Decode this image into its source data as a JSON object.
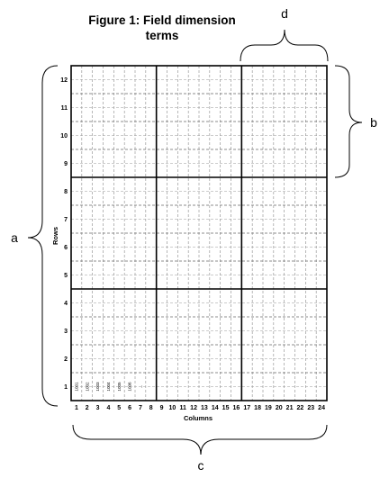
{
  "figure": {
    "title_line1": "Figure 1: Field dimension",
    "title_line2": "terms"
  },
  "axes": {
    "x_label": "Columns",
    "y_label": "Rows",
    "column_ticks": [
      "1",
      "2",
      "3",
      "4",
      "5",
      "6",
      "7",
      "8",
      "9",
      "10",
      "11",
      "12",
      "13",
      "14",
      "15",
      "16",
      "17",
      "18",
      "19",
      "20",
      "21",
      "22",
      "23",
      "24"
    ],
    "row_ticks": [
      "1",
      "2",
      "3",
      "4",
      "5",
      "6",
      "7",
      "8",
      "9",
      "10",
      "11",
      "12"
    ]
  },
  "plots": {
    "labels": [
      "1001",
      "1002",
      "1003",
      "1004",
      "1005",
      "1006",
      "..."
    ]
  },
  "braces": {
    "a": "a",
    "b": "b",
    "c": "c",
    "d": "d"
  },
  "grid": {
    "columns": 24,
    "rows": 12,
    "block_columns": 8,
    "block_rows": 4,
    "sub_rows_per_row": 2
  }
}
